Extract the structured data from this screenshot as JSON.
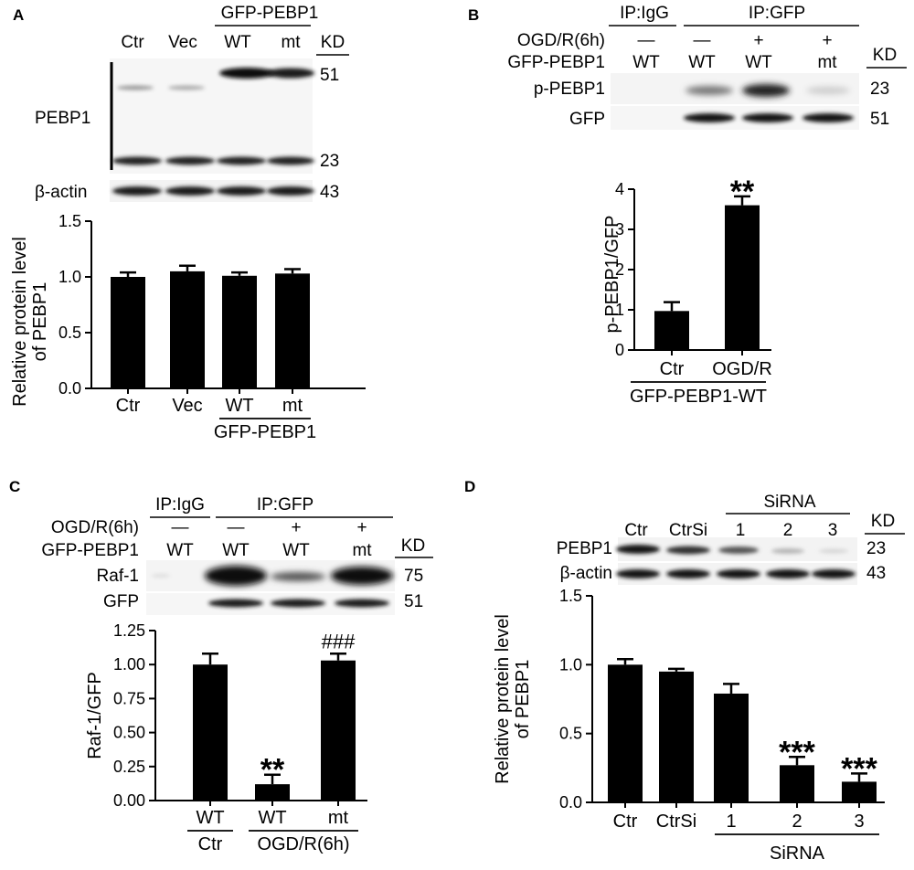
{
  "panels": {
    "A": {
      "letter": "A",
      "blot": {
        "group_label": "GFP-PEBP1",
        "lanes": [
          "Ctr",
          "Vec",
          "WT",
          "mt"
        ],
        "kd_header": "KD",
        "rows": [
          {
            "label": "PEBP1",
            "kd": [
              "51",
              "23"
            ]
          },
          {
            "label": "β-actin",
            "kd": [
              "43"
            ]
          }
        ]
      }
    },
    "B": {
      "letter": "B",
      "blot": {
        "ip_labels": [
          "IP:IgG",
          "IP:GFP"
        ],
        "condition_label": "OGD/R(6h)",
        "condition_values": [
          "—",
          "—",
          "+",
          "+"
        ],
        "construct_label": "GFP-PEBP1",
        "construct_values": [
          "WT",
          "WT",
          "WT",
          "mt"
        ],
        "kd_header": "KD",
        "rows": [
          {
            "label": "p-PEBP1",
            "kd": "23"
          },
          {
            "label": "GFP",
            "kd": "51"
          }
        ]
      }
    },
    "C": {
      "letter": "C",
      "blot": {
        "ip_labels": [
          "IP:IgG",
          "IP:GFP"
        ],
        "condition_label": "OGD/R(6h)",
        "condition_values": [
          "—",
          "—",
          "+",
          "+"
        ],
        "construct_label": "GFP-PEBP1",
        "construct_values": [
          "WT",
          "WT",
          "WT",
          "mt"
        ],
        "kd_header": "KD",
        "rows": [
          {
            "label": "Raf-1",
            "kd": "75"
          },
          {
            "label": "GFP",
            "kd": "51"
          }
        ]
      }
    },
    "D": {
      "letter": "D",
      "blot": {
        "group_label": "SiRNA",
        "lanes": [
          "Ctr",
          "CtrSi",
          "1",
          "2",
          "3"
        ],
        "kd_header": "KD",
        "rows": [
          {
            "label": "PEBP1",
            "kd": "23"
          },
          {
            "label": "β-actin",
            "kd": "43"
          }
        ]
      }
    }
  },
  "chart_data": [
    {
      "panel": "A",
      "type": "bar",
      "categories": [
        "Ctr",
        "Vec",
        "WT",
        "mt"
      ],
      "group_label": "GFP-PEBP1",
      "values": [
        1.0,
        1.05,
        1.01,
        1.03
      ],
      "errors": [
        0.04,
        0.05,
        0.03,
        0.04
      ],
      "ylabel": "Relative protein level of PEBP1",
      "ylim": [
        0,
        1.5
      ],
      "yticks": [
        "0.0",
        "0.5",
        "1.0",
        "1.5"
      ],
      "annotations": [
        "",
        "",
        "",
        ""
      ]
    },
    {
      "panel": "B",
      "type": "bar",
      "categories": [
        "Ctr",
        "OGD/R"
      ],
      "group_label": "GFP-PEBP1-WT",
      "values": [
        0.97,
        3.6
      ],
      "errors": [
        0.22,
        0.22
      ],
      "ylabel": "p-PEBP1/GFP",
      "ylim": [
        0,
        4
      ],
      "yticks": [
        "0",
        "1",
        "2",
        "3",
        "4"
      ],
      "annotations": [
        "",
        "**"
      ]
    },
    {
      "panel": "C",
      "type": "bar",
      "categories": [
        "WT",
        "WT",
        "mt"
      ],
      "group_labels": [
        "Ctr",
        "OGD/R(6h)"
      ],
      "values": [
        1.0,
        0.12,
        1.03
      ],
      "errors": [
        0.08,
        0.07,
        0.05
      ],
      "ylabel": "Raf-1/GFP",
      "ylim": [
        0,
        1.25
      ],
      "yticks": [
        "0.00",
        "0.25",
        "0.50",
        "0.75",
        "1.00",
        "1.25"
      ],
      "annotations": [
        "",
        "**",
        "###"
      ]
    },
    {
      "panel": "D",
      "type": "bar",
      "categories": [
        "Ctr",
        "CtrSi",
        "1",
        "2",
        "3"
      ],
      "group_label": "SiRNA",
      "values": [
        1.0,
        0.95,
        0.79,
        0.27,
        0.15
      ],
      "errors": [
        0.04,
        0.02,
        0.07,
        0.06,
        0.06
      ],
      "ylabel": "Relative protein level of PEBP1",
      "ylim": [
        0,
        1.5
      ],
      "yticks": [
        "0.0",
        "0.5",
        "1.0",
        "1.5"
      ],
      "annotations": [
        "",
        "",
        "",
        "***",
        "***"
      ]
    }
  ]
}
